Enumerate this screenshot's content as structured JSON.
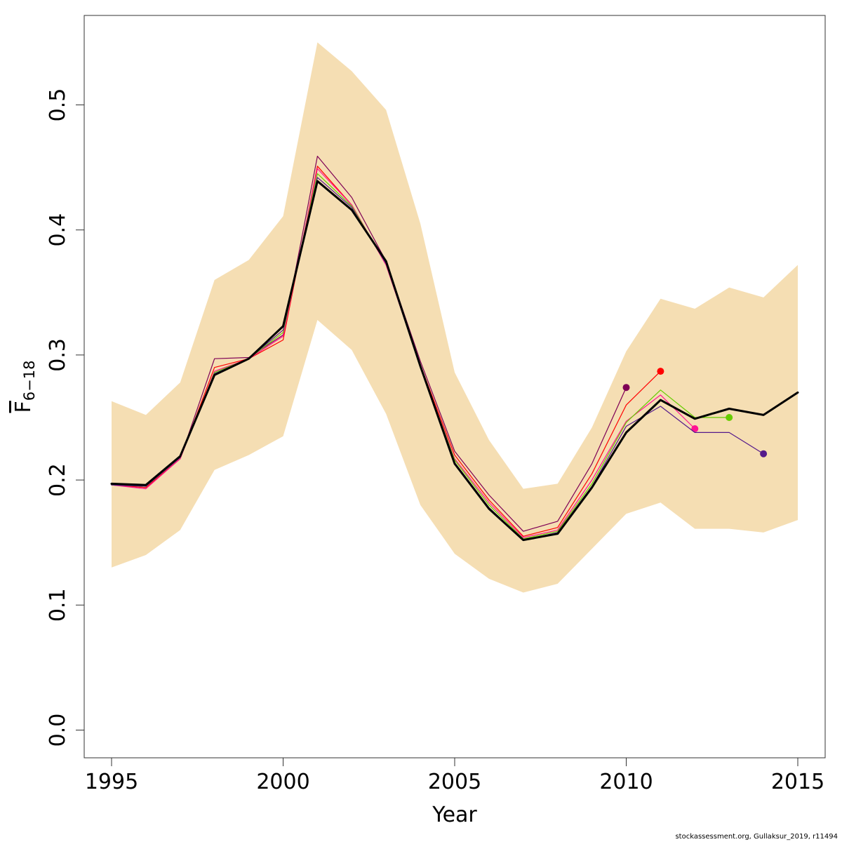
{
  "chart_data": {
    "type": "line",
    "xlabel": "Year",
    "ylabel": {
      "main": "F",
      "subscript": "6−18"
    },
    "xlim": [
      1995,
      2015
    ],
    "ylim": [
      0.0,
      0.55
    ],
    "xticks": [
      1995,
      2000,
      2005,
      2010,
      2015
    ],
    "xtick_labels": [
      "1995",
      "2000",
      "2005",
      "2010",
      "2015"
    ],
    "yticks": [
      0.0,
      0.1,
      0.2,
      0.3,
      0.4,
      0.5
    ],
    "ytick_labels": [
      "0.0",
      "0.1",
      "0.2",
      "0.3",
      "0.4",
      "0.5"
    ],
    "grid": false,
    "band": {
      "color": "#F5DEB3",
      "x": [
        1995,
        1996,
        1997,
        1998,
        1999,
        2000,
        2001,
        2002,
        2003,
        2004,
        2005,
        2006,
        2007,
        2008,
        2009,
        2010,
        2011,
        2012,
        2013,
        2014,
        2015
      ],
      "lower": [
        0.13,
        0.14,
        0.16,
        0.208,
        0.22,
        0.235,
        0.328,
        0.304,
        0.253,
        0.18,
        0.141,
        0.121,
        0.11,
        0.117,
        0.145,
        0.173,
        0.182,
        0.161,
        0.161,
        0.158,
        0.168
      ],
      "upper": [
        0.263,
        0.252,
        0.278,
        0.36,
        0.376,
        0.411,
        0.55,
        0.527,
        0.496,
        0.405,
        0.286,
        0.232,
        0.193,
        0.197,
        0.242,
        0.303,
        0.345,
        0.337,
        0.354,
        0.346,
        0.372
      ]
    },
    "series": [
      {
        "color": "#7F0055",
        "width": 1.2,
        "end_marker": true,
        "x": [
          1995,
          1996,
          1997,
          1998,
          1999,
          2000,
          2001,
          2002,
          2003,
          2004,
          2005,
          2006,
          2007,
          2008,
          2009,
          2010
        ],
        "values": [
          0.196,
          0.194,
          0.217,
          0.297,
          0.298,
          0.316,
          0.459,
          0.426,
          0.375,
          0.295,
          0.223,
          0.188,
          0.159,
          0.167,
          0.213,
          0.274
        ]
      },
      {
        "color": "#FF0000",
        "width": 1.2,
        "end_marker": true,
        "x": [
          1995,
          1996,
          1997,
          1998,
          1999,
          2000,
          2001,
          2002,
          2003,
          2004,
          2005,
          2006,
          2007,
          2008,
          2009,
          2010,
          2011
        ],
        "values": [
          0.196,
          0.194,
          0.217,
          0.29,
          0.297,
          0.312,
          0.451,
          0.42,
          0.372,
          0.292,
          0.22,
          0.184,
          0.155,
          0.162,
          0.205,
          0.26,
          0.287
        ]
      },
      {
        "color": "#FF1493",
        "width": 1.2,
        "end_marker": true,
        "x": [
          1995,
          1996,
          1997,
          1998,
          1999,
          2000,
          2001,
          2002,
          2003,
          2004,
          2005,
          2006,
          2007,
          2008,
          2009,
          2010,
          2011,
          2012
        ],
        "values": [
          0.196,
          0.193,
          0.217,
          0.287,
          0.297,
          0.315,
          0.449,
          0.42,
          0.372,
          0.291,
          0.217,
          0.182,
          0.154,
          0.16,
          0.2,
          0.247,
          0.268,
          0.241
        ]
      },
      {
        "color": "#66CC00",
        "width": 1.2,
        "end_marker": true,
        "x": [
          1995,
          1996,
          1997,
          1998,
          1999,
          2000,
          2001,
          2002,
          2003,
          2004,
          2005,
          2006,
          2007,
          2008,
          2009,
          2010,
          2011,
          2012,
          2013
        ],
        "values": [
          0.196,
          0.195,
          0.218,
          0.286,
          0.297,
          0.318,
          0.445,
          0.419,
          0.373,
          0.291,
          0.216,
          0.18,
          0.153,
          0.159,
          0.197,
          0.246,
          0.272,
          0.25,
          0.25
        ]
      },
      {
        "color": "#551A8B",
        "width": 1.2,
        "end_marker": true,
        "x": [
          1995,
          1996,
          1997,
          1998,
          1999,
          2000,
          2001,
          2002,
          2003,
          2004,
          2005,
          2006,
          2007,
          2008,
          2009,
          2010,
          2011,
          2012,
          2013,
          2014
        ],
        "values": [
          0.196,
          0.195,
          0.218,
          0.285,
          0.297,
          0.32,
          0.442,
          0.418,
          0.373,
          0.29,
          0.214,
          0.178,
          0.152,
          0.158,
          0.195,
          0.243,
          0.259,
          0.238,
          0.238,
          0.221
        ]
      },
      {
        "color": "#000000",
        "width": 3,
        "end_marker": false,
        "x": [
          1995,
          1996,
          1997,
          1998,
          1999,
          2000,
          2001,
          2002,
          2003,
          2004,
          2005,
          2006,
          2007,
          2008,
          2009,
          2010,
          2011,
          2012,
          2013,
          2014,
          2015
        ],
        "values": [
          0.197,
          0.196,
          0.219,
          0.284,
          0.297,
          0.323,
          0.439,
          0.416,
          0.375,
          0.291,
          0.213,
          0.177,
          0.152,
          0.157,
          0.194,
          0.238,
          0.264,
          0.249,
          0.257,
          0.252,
          0.27
        ]
      }
    ]
  },
  "footer": "stockassessment.org, Gullaksur_2019, r11494"
}
